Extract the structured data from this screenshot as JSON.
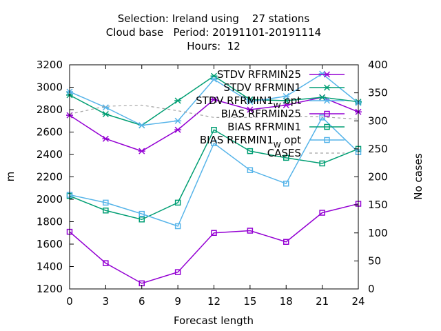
{
  "chart_data": {
    "type": "line",
    "title_lines": [
      "Selection: Ireland using    27 stations",
      "Cloud base   Period: 20191101-20191114",
      "Hours:  12"
    ],
    "xlabel": "Forecast length",
    "ylabel": "m",
    "y2label": "No cases",
    "x": [
      0,
      3,
      6,
      9,
      12,
      15,
      18,
      21,
      24
    ],
    "xlim": [
      0,
      24
    ],
    "ylim": [
      1200,
      3200
    ],
    "y2lim": [
      0,
      400
    ],
    "xticks": [
      0,
      3,
      6,
      9,
      12,
      15,
      18,
      21,
      24
    ],
    "yticks": [
      1200,
      1400,
      1600,
      1800,
      2000,
      2200,
      2400,
      2600,
      2800,
      3000,
      3200
    ],
    "y2ticks": [
      0,
      50,
      100,
      150,
      200,
      250,
      300,
      350,
      400
    ],
    "grid": false,
    "legend_position": "top-right",
    "series": [
      {
        "name": "STDV RFRMIN25",
        "axis": "y1",
        "marker": "x",
        "color": "#9400d3",
        "dashed": false,
        "values": [
          2750,
          2540,
          2430,
          2620,
          2890,
          2800,
          2840,
          2910,
          2780
        ]
      },
      {
        "name": "STDV RFRMIN1",
        "axis": "y1",
        "marker": "x",
        "color": "#009e73",
        "dashed": false,
        "values": [
          2930,
          2760,
          2660,
          2880,
          3100,
          2890,
          2880,
          2910,
          2870
        ]
      },
      {
        "name_parts": [
          "STDV RFRMIN1",
          "W",
          "opt"
        ],
        "axis": "y1",
        "marker": "x",
        "color": "#56b4e9",
        "dashed": false,
        "values": [
          2960,
          2820,
          2660,
          2700,
          3070,
          2870,
          2920,
          3120,
          2860
        ]
      },
      {
        "name": "BIAS RFRMIN25",
        "axis": "y1",
        "marker": "square",
        "color": "#9400d3",
        "dashed": false,
        "values": [
          1710,
          1430,
          1250,
          1350,
          1700,
          1720,
          1620,
          1880,
          1960
        ]
      },
      {
        "name": "BIAS RFRMIN1",
        "axis": "y1",
        "marker": "square",
        "color": "#009e73",
        "dashed": false,
        "values": [
          2030,
          1900,
          1820,
          1970,
          2620,
          2430,
          2370,
          2320,
          2450
        ]
      },
      {
        "name_parts": [
          "BIAS RFRMIN1",
          "W",
          "opt"
        ],
        "axis": "y1",
        "marker": "square",
        "color": "#56b4e9",
        "dashed": false,
        "values": [
          2040,
          1970,
          1870,
          1760,
          2500,
          2260,
          2140,
          2730,
          2420
        ]
      },
      {
        "name": "CASES",
        "axis": "y2",
        "marker": "none",
        "color": "#a0a0a0",
        "dashed": true,
        "values": [
          312,
          326,
          328,
          318,
          306,
          306,
          309,
          307,
          303
        ]
      }
    ]
  }
}
